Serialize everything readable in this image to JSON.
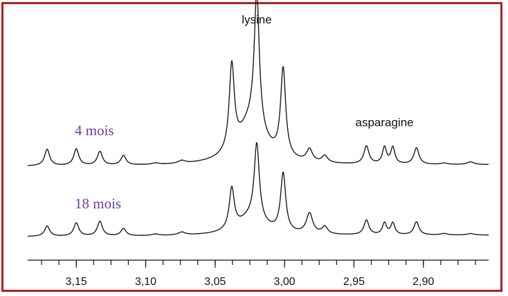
{
  "chart_data": {
    "type": "line",
    "title": "",
    "xlabel": "",
    "ylabel": "",
    "x_axis_reversed": true,
    "xlim": [
      3.185,
      2.853
    ],
    "x_ticks": [
      {
        "value": 3.15,
        "label": "3,15"
      },
      {
        "value": 3.1,
        "label": "3,10"
      },
      {
        "value": 3.05,
        "label": "3,05"
      },
      {
        "value": 3.0,
        "label": "3,00"
      },
      {
        "value": 2.95,
        "label": "2,95"
      },
      {
        "value": 2.9,
        "label": "2,90"
      }
    ],
    "minor_tick_step": 0.0125,
    "grid": false,
    "annotations": [
      {
        "text": "lysine",
        "x": 3.02
      },
      {
        "text": "asparagine",
        "x": 2.928
      }
    ],
    "series": [
      {
        "name": "4 mois",
        "label_color": "#6b3fa0",
        "baseline": 0.0,
        "peaks": [
          {
            "x": 3.171,
            "height": 0.12,
            "width": 0.0022
          },
          {
            "x": 3.15,
            "height": 0.12,
            "width": 0.0022
          },
          {
            "x": 3.133,
            "height": 0.1,
            "width": 0.0022
          },
          {
            "x": 3.116,
            "height": 0.07,
            "width": 0.0022
          },
          {
            "x": 3.093,
            "height": 0.01,
            "width": 0.003
          },
          {
            "x": 3.074,
            "height": 0.02,
            "width": 0.003
          },
          {
            "x": 3.038,
            "height": 0.62,
            "width": 0.0022
          },
          {
            "x": 3.02,
            "height": 0.98,
            "width": 0.0022
          },
          {
            "x": 3.001,
            "height": 0.64,
            "width": 0.0022
          },
          {
            "x": 3.024,
            "height": 0.3,
            "width": 0.012
          },
          {
            "x": 2.982,
            "height": 0.09,
            "width": 0.0025
          },
          {
            "x": 2.971,
            "height": 0.05,
            "width": 0.0025
          },
          {
            "x": 2.941,
            "height": 0.13,
            "width": 0.0022
          },
          {
            "x": 2.928,
            "height": 0.12,
            "width": 0.0018
          },
          {
            "x": 2.922,
            "height": 0.12,
            "width": 0.0018
          },
          {
            "x": 2.905,
            "height": 0.12,
            "width": 0.0022
          },
          {
            "x": 2.885,
            "height": 0.01,
            "width": 0.003
          },
          {
            "x": 2.866,
            "height": 0.02,
            "width": 0.003
          }
        ]
      },
      {
        "name": "18 mois",
        "label_color": "#6b3fa0",
        "baseline": 0.0,
        "peaks": [
          {
            "x": 3.171,
            "height": 0.07,
            "width": 0.0022
          },
          {
            "x": 3.15,
            "height": 0.09,
            "width": 0.0022
          },
          {
            "x": 3.133,
            "height": 0.1,
            "width": 0.0022
          },
          {
            "x": 3.116,
            "height": 0.05,
            "width": 0.0022
          },
          {
            "x": 3.093,
            "height": 0.01,
            "width": 0.003
          },
          {
            "x": 3.074,
            "height": 0.02,
            "width": 0.003
          },
          {
            "x": 3.038,
            "height": 0.28,
            "width": 0.0022
          },
          {
            "x": 3.02,
            "height": 0.52,
            "width": 0.0022
          },
          {
            "x": 3.001,
            "height": 0.4,
            "width": 0.0022
          },
          {
            "x": 3.024,
            "height": 0.12,
            "width": 0.012
          },
          {
            "x": 2.982,
            "height": 0.14,
            "width": 0.0028
          },
          {
            "x": 2.971,
            "height": 0.05,
            "width": 0.0025
          },
          {
            "x": 2.941,
            "height": 0.1,
            "width": 0.0022
          },
          {
            "x": 2.928,
            "height": 0.08,
            "width": 0.0018
          },
          {
            "x": 2.922,
            "height": 0.08,
            "width": 0.0018
          },
          {
            "x": 2.905,
            "height": 0.09,
            "width": 0.0022
          },
          {
            "x": 2.885,
            "height": 0.01,
            "width": 0.003
          },
          {
            "x": 2.866,
            "height": 0.01,
            "width": 0.003
          }
        ]
      }
    ]
  }
}
